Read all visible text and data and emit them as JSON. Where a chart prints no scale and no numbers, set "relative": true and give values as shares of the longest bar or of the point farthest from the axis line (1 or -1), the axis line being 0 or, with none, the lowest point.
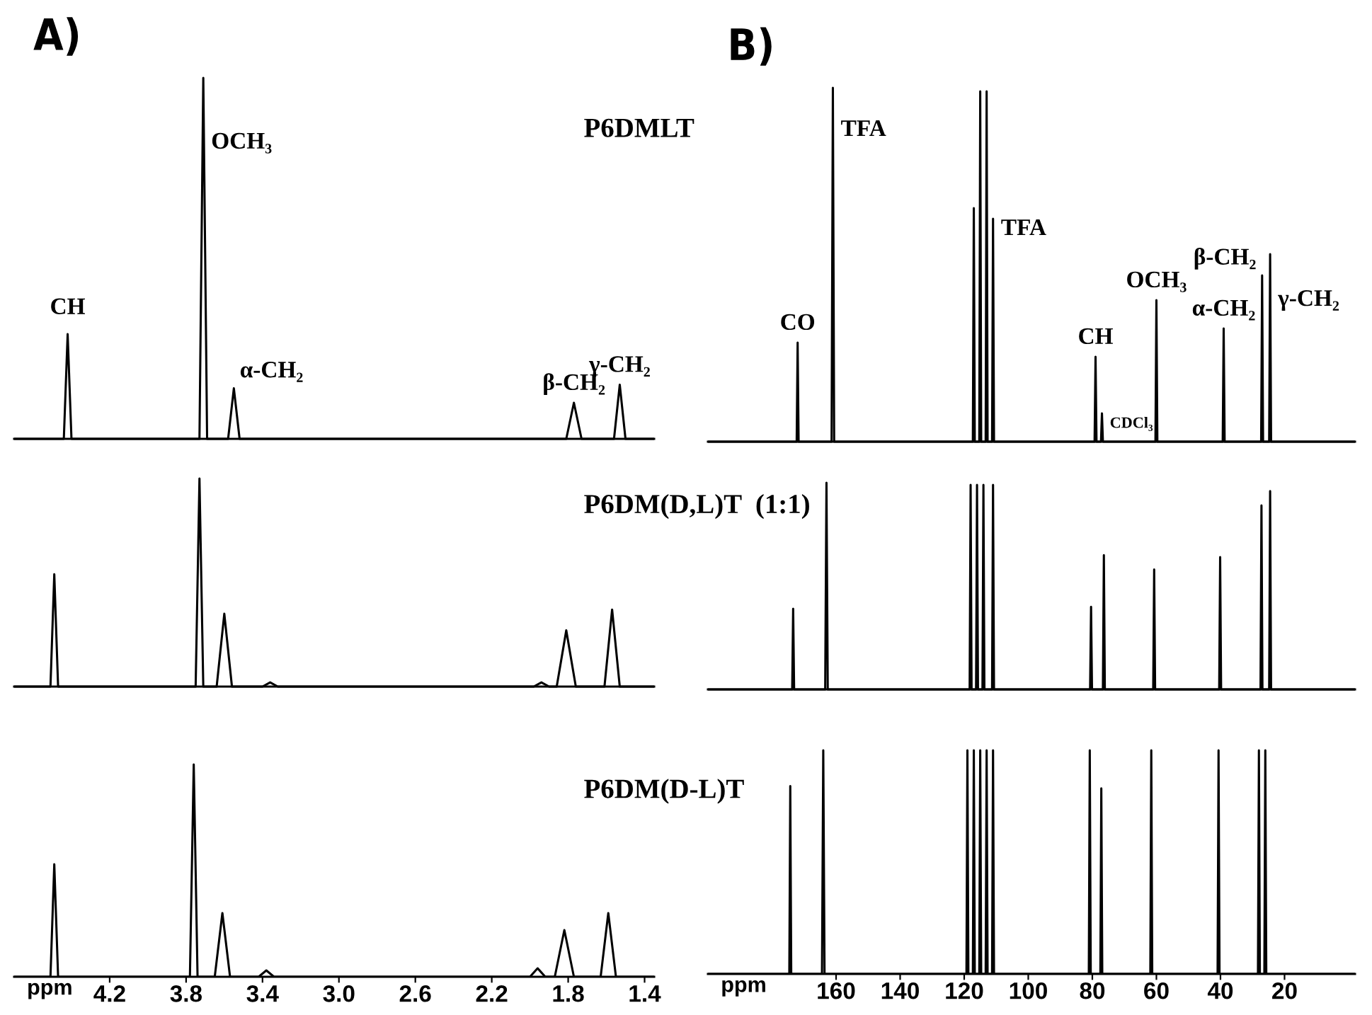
{
  "chart_data": [
    {
      "type": "line",
      "title": "A)",
      "relative": true,
      "tick_labels": false,
      "xlim": [
        4.7,
        1.35
      ],
      "annotations": [
        "P6DMLT",
        {
          "text": "CH",
          "x": 4.42,
          "y": 0.31
        },
        {
          "text": "OCH₃",
          "x": 3.71,
          "y": 0.82
        },
        {
          "text": "α-CH₂",
          "x": 3.55,
          "y": 0.14
        },
        {
          "text": "β-CH₂",
          "x": 1.77,
          "y": 0.1
        },
        {
          "text": "γ-CH₂",
          "x": 1.53,
          "y": 0.15
        }
      ],
      "series": [
        {
          "color": "#000000",
          "x": [
            4.7,
            4.44,
            4.42,
            4.4,
            3.73,
            3.71,
            3.69,
            3.58,
            3.55,
            3.52,
            1.81,
            1.77,
            1.73,
            1.56,
            1.53,
            1.5,
            1.35
          ],
          "values": [
            0,
            0,
            0.29,
            0,
            0,
            1.0,
            0,
            0,
            0.14,
            0,
            0,
            0.1,
            0,
            0,
            0.15,
            0,
            0
          ]
        }
      ]
    },
    {
      "type": "line",
      "relative": true,
      "tick_labels": false,
      "xlim": [
        4.7,
        1.35
      ],
      "annotations": [
        "P6DM(D,L)T  (1:1)"
      ],
      "series": [
        {
          "color": "#000000",
          "x": [
            4.7,
            4.51,
            4.49,
            4.47,
            3.75,
            3.73,
            3.71,
            3.64,
            3.6,
            3.56,
            3.4,
            3.36,
            3.32,
            1.98,
            1.94,
            1.9,
            1.86,
            1.81,
            1.76,
            1.61,
            1.57,
            1.53,
            1.35
          ],
          "values": [
            0,
            0,
            0.54,
            0,
            0,
            1.0,
            0,
            0,
            0.35,
            0,
            0,
            0.02,
            0,
            0,
            0.02,
            0,
            0,
            0.27,
            0,
            0,
            0.37,
            0,
            0
          ]
        }
      ]
    },
    {
      "type": "line",
      "relative": true,
      "xlabel": "ppm",
      "xlim": [
        4.7,
        1.35
      ],
      "xticks": [
        4.2,
        3.8,
        3.4,
        {
          "value": 3,
          "label": "3.0"
        },
        2.6,
        2.2,
        1.8,
        1.4
      ],
      "annotations": [
        "P6DM(D-L)T"
      ],
      "series": [
        {
          "color": "#000000",
          "x": [
            4.7,
            4.51,
            4.49,
            4.47,
            3.78,
            3.76,
            3.74,
            3.65,
            3.61,
            3.57,
            3.42,
            3.38,
            3.34,
            2.0,
            1.96,
            1.92,
            1.87,
            1.82,
            1.77,
            1.63,
            1.59,
            1.55,
            1.35
          ],
          "values": [
            0,
            0,
            0.53,
            0,
            0,
            1.0,
            0,
            0,
            0.3,
            0,
            0,
            0.03,
            0,
            0,
            0.04,
            0,
            0,
            0.22,
            0,
            0,
            0.3,
            0,
            0
          ]
        }
      ]
    },
    {
      "type": "line",
      "title": "B)",
      "relative": true,
      "tick_labels": false,
      "xlim": [
        200,
        -2
      ],
      "annotations": [
        {
          "text": "CO",
          "x": 172,
          "y": 0.28
        },
        {
          "text": "TFA",
          "x": 161,
          "y": 0.88
        },
        {
          "text": "TFA",
          "x": 111,
          "y": 0.6
        },
        {
          "text": "CH",
          "x": 79,
          "y": 0.24
        },
        {
          "text": "CDCl₃",
          "x": 77,
          "y": 0.05
        },
        {
          "text": "OCH₃",
          "x": 60,
          "y": 0.4
        },
        {
          "text": "α-CH₂",
          "x": 39,
          "y": 0.32
        },
        {
          "text": "β-CH₂",
          "x": 27,
          "y": 0.47
        },
        {
          "text": "γ-CH₂",
          "x": 24.5,
          "y": 0.4
        }
      ],
      "series": [
        {
          "color": "#000000",
          "x": [
            200,
            172.3,
            172,
            171.7,
            161.4,
            161,
            160.6,
            117.3,
            117,
            116.7,
            115.3,
            115,
            114.7,
            113.3,
            113,
            112.7,
            111.3,
            111,
            110.7,
            79.3,
            79,
            78.7,
            77.3,
            77,
            76.7,
            60.3,
            60,
            59.7,
            39.3,
            39,
            38.7,
            27.3,
            27,
            26.7,
            24.8,
            24.5,
            24.2,
            -2
          ],
          "values": [
            0,
            0,
            0.28,
            0,
            0,
            1.0,
            0,
            0,
            0.66,
            0,
            0,
            0.99,
            0,
            0,
            0.99,
            0,
            0,
            0.63,
            0,
            0,
            0.24,
            0,
            0,
            0.08,
            0,
            0,
            0.4,
            0,
            0,
            0.32,
            0,
            0,
            0.47,
            0,
            0,
            0.53,
            0,
            0
          ]
        }
      ]
    },
    {
      "type": "line",
      "relative": true,
      "tick_labels": false,
      "xlim": [
        200,
        -2
      ],
      "series": [
        {
          "color": "#000000",
          "x": [
            200,
            173.7,
            173.4,
            173.1,
            163.4,
            163,
            162.6,
            118.3,
            118,
            117.7,
            116.3,
            116,
            115.7,
            114.3,
            114,
            113.7,
            111.3,
            111,
            110.7,
            80.7,
            80.4,
            80.1,
            76.7,
            76.4,
            76.1,
            61,
            60.7,
            60.4,
            40.4,
            40.1,
            39.8,
            27.5,
            27.2,
            26.9,
            24.8,
            24.5,
            24.2,
            -2
          ],
          "values": [
            0,
            0,
            0.39,
            0,
            0,
            1.0,
            0,
            0,
            0.99,
            0,
            0,
            0.99,
            0,
            0,
            0.99,
            0,
            0,
            0.99,
            0,
            0,
            0.4,
            0,
            0,
            0.65,
            0,
            0,
            0.58,
            0,
            0,
            0.64,
            0,
            0,
            0.89,
            0,
            0,
            0.96,
            0,
            0
          ]
        }
      ]
    },
    {
      "type": "line",
      "relative": true,
      "xlabel": "ppm",
      "xlim": [
        200,
        -2
      ],
      "xticks": [
        160,
        140,
        120,
        100,
        80,
        60,
        40,
        20
      ],
      "series": [
        {
          "color": "#000000",
          "x": [
            200,
            174.6,
            174.3,
            174,
            164.4,
            164,
            163.6,
            119.3,
            119,
            118.7,
            117.3,
            117,
            116.7,
            115.3,
            115,
            114.7,
            113.3,
            113,
            112.7,
            111.3,
            111,
            110.7,
            81.1,
            80.8,
            80.5,
            77.5,
            77.2,
            76.9,
            61.9,
            61.6,
            61.3,
            40.9,
            40.6,
            40.3,
            28.3,
            28,
            27.7,
            26.3,
            26,
            25.7,
            -2
          ],
          "values": [
            0,
            0,
            0.84,
            0,
            0,
            1.0,
            0,
            0,
            1.0,
            0,
            0,
            1.0,
            0,
            0,
            1.0,
            0,
            0,
            1.0,
            0,
            0,
            1.0,
            0,
            0,
            1.0,
            0,
            0,
            0.83,
            0,
            0,
            1.0,
            0,
            0,
            1.0,
            0,
            0,
            1.0,
            0,
            0,
            1.0,
            0,
            0
          ]
        }
      ]
    }
  ]
}
